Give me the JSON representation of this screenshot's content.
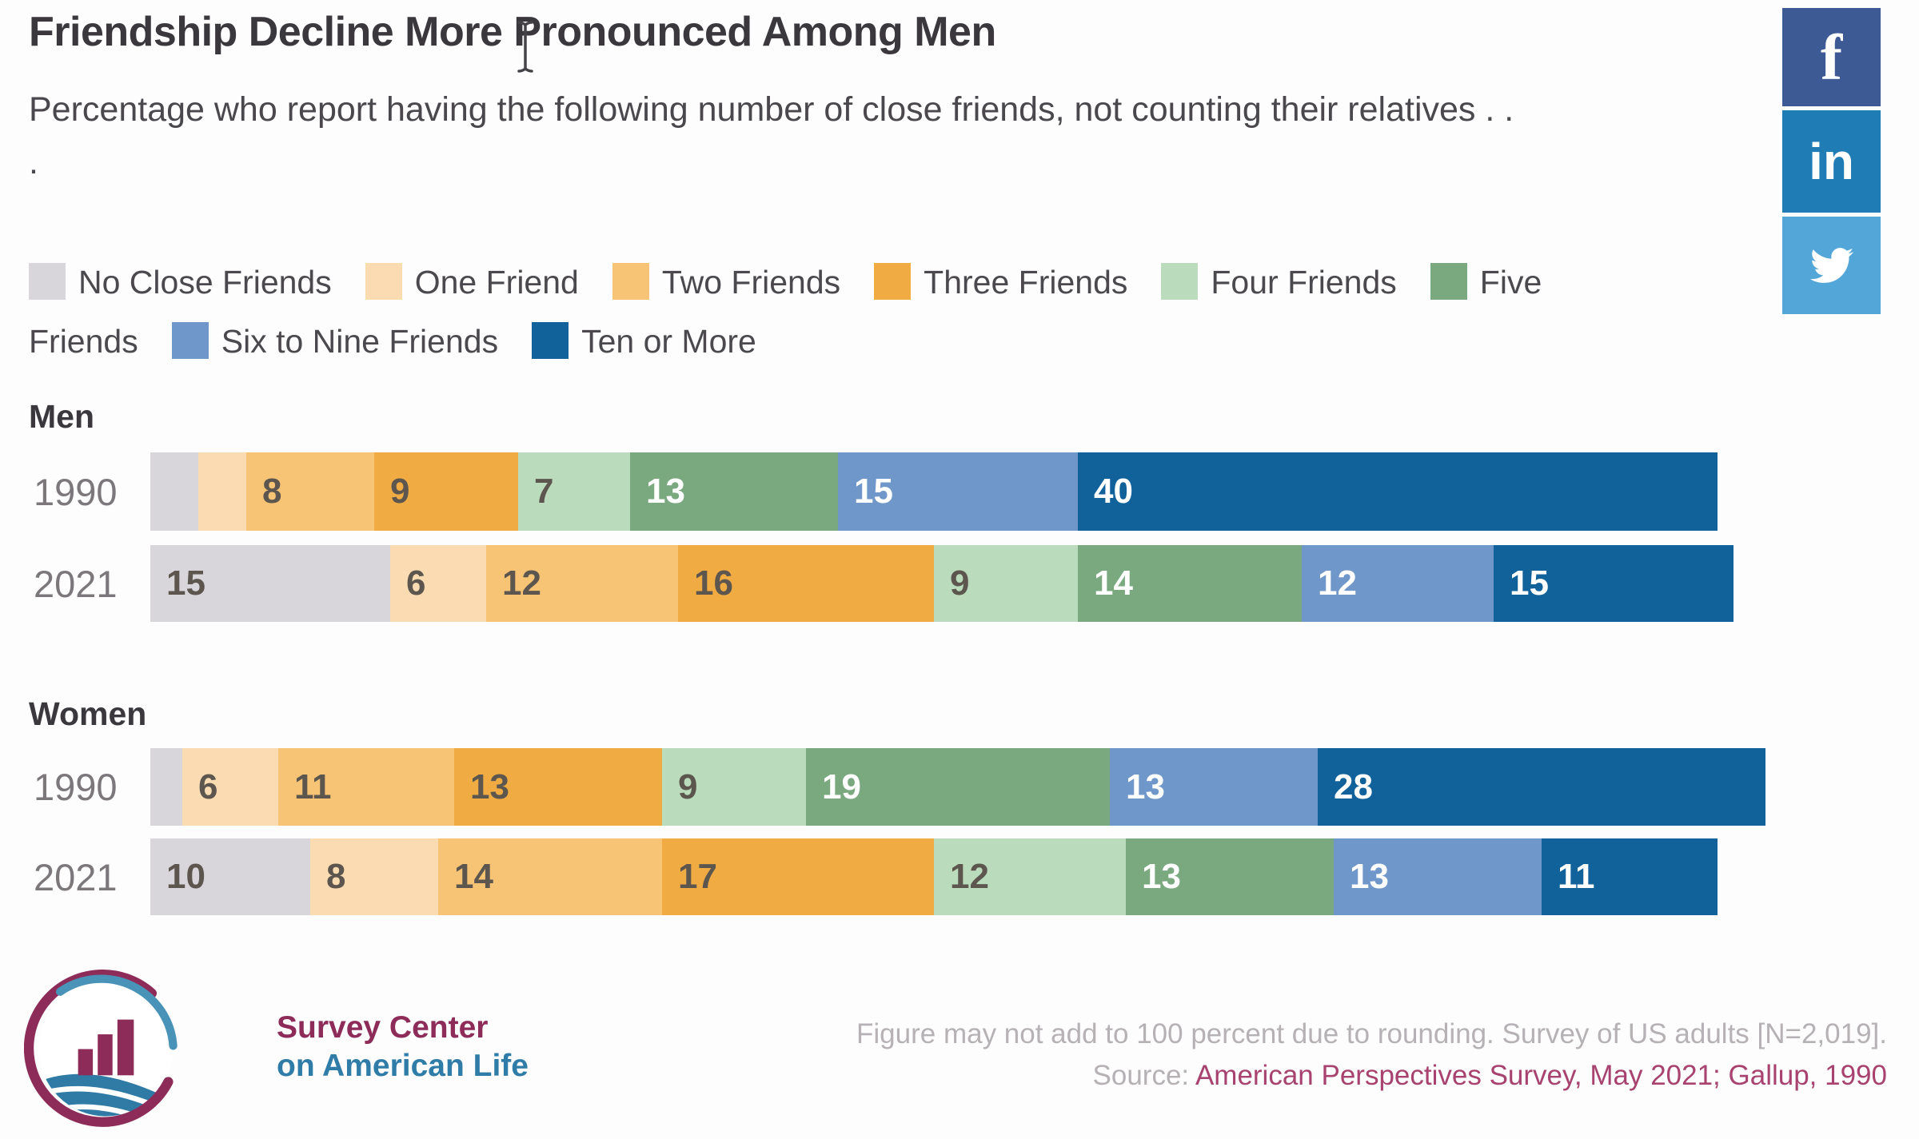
{
  "chart_data": {
    "type": "bar",
    "variant": "horizontal_stacked_percent",
    "title": "Friendship Decline More Pronounced Among Men",
    "subtitle": "Percentage who report having the following number of close friends, not counting their relatives . . .",
    "legend_position": "top",
    "unit": "percent",
    "series": [
      {
        "name": "No Close Friends",
        "color": "#d9d6db",
        "label_text_color": "#5c564f"
      },
      {
        "name": "One Friend",
        "color": "#fbdcb2",
        "label_text_color": "#5c564f"
      },
      {
        "name": "Two Friends",
        "color": "#f6c474",
        "label_text_color": "#5c564f"
      },
      {
        "name": "Three Friends",
        "color": "#f0ac43",
        "label_text_color": "#5c564f"
      },
      {
        "name": "Four Friends",
        "color": "#badcbc",
        "label_text_color": "#5c564f"
      },
      {
        "name": "Five Friends",
        "color": "#7aa980",
        "label_text_color": "#ffffff"
      },
      {
        "name": "Six to Nine Friends",
        "color": "#6f97c9",
        "label_text_color": "#ffffff"
      },
      {
        "name": "Ten or More",
        "color": "#11619b",
        "label_text_color": "#ffffff"
      }
    ],
    "groups": [
      {
        "label": "Men",
        "rows": [
          {
            "year": "1990",
            "values": [
              3,
              3,
              8,
              9,
              7,
              13,
              15,
              40
            ]
          },
          {
            "year": "2021",
            "values": [
              15,
              6,
              12,
              16,
              9,
              14,
              12,
              15
            ]
          }
        ]
      },
      {
        "label": "Women",
        "rows": [
          {
            "year": "1990",
            "values": [
              2,
              6,
              11,
              13,
              9,
              19,
              13,
              28
            ]
          },
          {
            "year": "2021",
            "values": [
              10,
              8,
              14,
              17,
              12,
              13,
              13,
              11
            ]
          }
        ]
      }
    ],
    "value_label_min": 6,
    "note": "Figure may not add to 100 percent due to rounding. Survey of US adults [N=2,019].",
    "source_prefix": "Source: ",
    "source": "American Perspectives Survey, May 2021; Gallup, 1990"
  },
  "social": {
    "facebook_glyph": "f",
    "linkedin_glyph": "in",
    "facebook_color": "#3d5a95",
    "linkedin_color": "#1f7cb4",
    "twitter_color": "#52a6d8"
  },
  "footer": {
    "logo_line1": "Survey Center",
    "logo_line2": "on American Life"
  }
}
